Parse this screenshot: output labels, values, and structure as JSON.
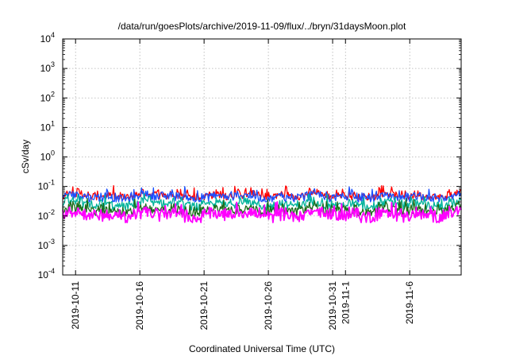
{
  "chart_data": {
    "type": "line",
    "title": "/data/run/goesPlots/archive/2019-11-09/flux/../bryn/31daysMoon.plot",
    "xlabel": "Coordinated Universal Time (UTC)",
    "ylabel": "cSv/day",
    "yscale": "log",
    "ylim": [
      0.0001,
      10000
    ],
    "y_ticks": [
      {
        "base": "10",
        "exp": "-4",
        "value": 0.0001
      },
      {
        "base": "10",
        "exp": "-3",
        "value": 0.001
      },
      {
        "base": "10",
        "exp": "-2",
        "value": 0.01
      },
      {
        "base": "10",
        "exp": "-1",
        "value": 0.1
      },
      {
        "base": "10",
        "exp": "0",
        "value": 1
      },
      {
        "base": "10",
        "exp": "1",
        "value": 10
      },
      {
        "base": "10",
        "exp": "2",
        "value": 100
      },
      {
        "base": "10",
        "exp": "3",
        "value": 1000
      },
      {
        "base": "10",
        "exp": "4",
        "value": 10000
      }
    ],
    "xlim": [
      "2019-10-10",
      "2019-11-10"
    ],
    "x_ticks": [
      {
        "label": "2019-10-11",
        "date": "2019-10-11"
      },
      {
        "label": "2019-10-16",
        "date": "2019-10-16"
      },
      {
        "label": "2019-10-21",
        "date": "2019-10-21"
      },
      {
        "label": "2019-10-26",
        "date": "2019-10-26"
      },
      {
        "label": "2019-10-31",
        "date": "2019-10-31"
      },
      {
        "label": "2019-11-1",
        "date": "2019-11-01"
      },
      {
        "label": "2019-11-6",
        "date": "2019-11-06"
      }
    ],
    "grid": true,
    "series": [
      {
        "color": "#ff0000",
        "typical": 0.05,
        "low": 0.035,
        "high": 0.11
      },
      {
        "color": "#1a4fff",
        "typical": 0.045,
        "low": 0.03,
        "high": 0.1
      },
      {
        "color": "#00b39a",
        "typical": 0.025,
        "low": 0.016,
        "high": 0.06
      },
      {
        "color": "#1a6b1a",
        "typical": 0.016,
        "low": 0.01,
        "high": 0.04
      },
      {
        "color": "#ff00ff",
        "typical": 0.011,
        "low": 0.006,
        "high": 0.03
      }
    ]
  }
}
